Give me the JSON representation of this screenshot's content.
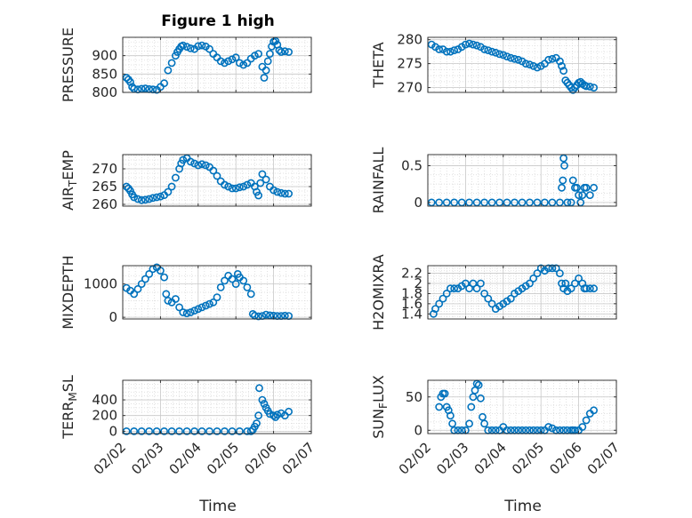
{
  "figure": {
    "title": "Figure 1 high",
    "xlabel": "Time",
    "marker_color": "#0072BD"
  },
  "chart_data": [
    {
      "type": "scatter",
      "ylabel": "PRESSURE",
      "ylim": [
        800,
        950
      ],
      "yticks": [
        800,
        850,
        900
      ],
      "ytick_labels": [
        "800",
        "850",
        "900"
      ],
      "xlim": [
        0,
        5
      ],
      "xticks": [
        0,
        1,
        2,
        3,
        4,
        5
      ],
      "xtick_labels": [
        "02/02",
        "02/03",
        "02/04",
        "02/05",
        "02/06",
        "02/07"
      ],
      "x": [
        0.1,
        0.15,
        0.2,
        0.25,
        0.3,
        0.4,
        0.5,
        0.6,
        0.7,
        0.8,
        0.9,
        1.0,
        1.1,
        1.2,
        1.3,
        1.4,
        1.45,
        1.5,
        1.55,
        1.6,
        1.7,
        1.8,
        1.9,
        2.0,
        2.1,
        2.2,
        2.3,
        2.4,
        2.5,
        2.6,
        2.7,
        2.8,
        2.9,
        3.0,
        3.1,
        3.2,
        3.3,
        3.4,
        3.5,
        3.6,
        3.7,
        3.75,
        3.8,
        3.85,
        3.9,
        3.95,
        4.0,
        4.05,
        4.1,
        4.15,
        4.2,
        4.3,
        4.4
      ],
      "y": [
        840,
        835,
        828,
        815,
        810,
        808,
        810,
        811,
        809,
        808,
        807,
        815,
        825,
        860,
        880,
        900,
        910,
        918,
        925,
        928,
        924,
        920,
        918,
        926,
        928,
        925,
        918,
        905,
        895,
        885,
        880,
        885,
        890,
        895,
        880,
        875,
        880,
        892,
        900,
        905,
        870,
        840,
        860,
        885,
        905,
        925,
        938,
        940,
        930,
        915,
        910,
        912,
        910
      ]
    },
    {
      "type": "scatter",
      "ylabel": "THETA",
      "ylim": [
        269,
        280.5
      ],
      "yticks": [
        270,
        275,
        280
      ],
      "ytick_labels": [
        "270",
        "275",
        "280"
      ],
      "xlim": [
        0,
        5
      ],
      "xticks": [
        0,
        1,
        2,
        3,
        4,
        5
      ],
      "xtick_labels": [
        "02/02",
        "02/03",
        "02/04",
        "02/05",
        "02/06",
        "02/07"
      ],
      "x": [
        0.1,
        0.2,
        0.3,
        0.4,
        0.5,
        0.6,
        0.7,
        0.8,
        0.9,
        1.0,
        1.1,
        1.2,
        1.3,
        1.4,
        1.5,
        1.6,
        1.7,
        1.8,
        1.9,
        2.0,
        2.1,
        2.2,
        2.3,
        2.4,
        2.5,
        2.6,
        2.7,
        2.8,
        2.9,
        3.0,
        3.1,
        3.2,
        3.3,
        3.4,
        3.5,
        3.55,
        3.6,
        3.65,
        3.7,
        3.75,
        3.8,
        3.85,
        3.9,
        3.95,
        4.0,
        4.05,
        4.1,
        4.15,
        4.2,
        4.3,
        4.4
      ],
      "y": [
        279,
        278.5,
        278,
        278,
        277.5,
        277.5,
        277.8,
        278,
        278.5,
        279,
        279.2,
        279,
        278.8,
        278.5,
        278,
        277.8,
        277.5,
        277.3,
        277,
        276.8,
        276.5,
        276.2,
        276,
        275.8,
        275.5,
        275,
        274.8,
        274.5,
        274.2,
        274.5,
        275,
        275.8,
        276,
        276.2,
        275.5,
        274.5,
        273.5,
        271.5,
        271,
        270.5,
        270,
        269.5,
        270,
        270.5,
        271,
        271.2,
        270.8,
        270.5,
        270.3,
        270.2,
        270
      ]
    },
    {
      "type": "scatter",
      "ylabel": "AIR_TEMP",
      "ylim": [
        259.5,
        274
      ],
      "yticks": [
        260,
        265,
        270
      ],
      "ytick_labels": [
        "260",
        "265",
        "270"
      ],
      "xlim": [
        0,
        5
      ],
      "xticks": [
        0,
        1,
        2,
        3,
        4,
        5
      ],
      "xtick_labels": [
        "02/02",
        "02/03",
        "02/04",
        "02/05",
        "02/06",
        "02/07"
      ],
      "x": [
        0.1,
        0.15,
        0.2,
        0.25,
        0.3,
        0.4,
        0.5,
        0.6,
        0.7,
        0.8,
        0.9,
        1.0,
        1.1,
        1.2,
        1.3,
        1.4,
        1.5,
        1.55,
        1.6,
        1.7,
        1.8,
        1.9,
        2.0,
        2.1,
        2.2,
        2.3,
        2.4,
        2.5,
        2.6,
        2.7,
        2.8,
        2.9,
        3.0,
        3.1,
        3.2,
        3.3,
        3.4,
        3.5,
        3.55,
        3.6,
        3.65,
        3.7,
        3.8,
        3.9,
        4.0,
        4.1,
        4.2,
        4.3,
        4.4
      ],
      "y": [
        265,
        264.5,
        263.8,
        262.8,
        262,
        261.5,
        261.2,
        261.3,
        261.5,
        261.8,
        262,
        262.2,
        262.6,
        263.5,
        265,
        267.5,
        270,
        271.5,
        272.5,
        273,
        272,
        271.5,
        271,
        271.3,
        271,
        270.5,
        269.5,
        268,
        266.5,
        265.5,
        265,
        264.5,
        264.5,
        264.8,
        265,
        265.5,
        266,
        265,
        263.5,
        262.5,
        266,
        268.5,
        267,
        265,
        264,
        263.5,
        263.2,
        263,
        263
      ]
    },
    {
      "type": "scatter",
      "ylabel": "RAINFALL",
      "ylim": [
        -0.05,
        0.65
      ],
      "yticks": [
        0,
        0.5
      ],
      "ytick_labels": [
        "0",
        "0.5"
      ],
      "xlim": [
        0,
        5
      ],
      "xticks": [
        0,
        1,
        2,
        3,
        4,
        5
      ],
      "xtick_labels": [
        "02/02",
        "02/03",
        "02/04",
        "02/05",
        "02/06",
        "02/07"
      ],
      "x": [
        0.1,
        0.3,
        0.5,
        0.7,
        0.9,
        1.1,
        1.3,
        1.5,
        1.7,
        1.9,
        2.1,
        2.3,
        2.5,
        2.7,
        2.9,
        3.1,
        3.3,
        3.5,
        3.55,
        3.58,
        3.6,
        3.62,
        3.7,
        3.8,
        3.85,
        3.9,
        3.95,
        4.0,
        4.05,
        4.1,
        4.15,
        4.2,
        4.3,
        4.4
      ],
      "y": [
        0,
        0,
        0,
        0,
        0,
        0,
        0,
        0,
        0,
        0,
        0,
        0,
        0,
        0,
        0,
        0,
        0,
        0,
        0.2,
        0.3,
        0.6,
        0.5,
        0,
        0,
        0.3,
        0.2,
        0.2,
        0.1,
        0,
        0.1,
        0.2,
        0.2,
        0.1,
        0.2
      ]
    },
    {
      "type": "scatter",
      "ylabel": "MIXDEPTH",
      "ylim": [
        -50,
        1550
      ],
      "yticks": [
        0,
        1000
      ],
      "ytick_labels": [
        "0",
        "1000"
      ],
      "xlim": [
        0,
        5
      ],
      "xticks": [
        0,
        1,
        2,
        3,
        4,
        5
      ],
      "xtick_labels": [
        "02/02",
        "02/03",
        "02/04",
        "02/05",
        "02/06",
        "02/07"
      ],
      "x": [
        0.1,
        0.2,
        0.3,
        0.4,
        0.5,
        0.6,
        0.7,
        0.8,
        0.9,
        1.0,
        1.1,
        1.15,
        1.2,
        1.3,
        1.4,
        1.5,
        1.6,
        1.7,
        1.8,
        1.9,
        2.0,
        2.1,
        2.2,
        2.3,
        2.4,
        2.5,
        2.6,
        2.7,
        2.8,
        2.9,
        3.0,
        3.05,
        3.1,
        3.2,
        3.3,
        3.4,
        3.45,
        3.5,
        3.6,
        3.7,
        3.8,
        3.9,
        4.0,
        4.1,
        4.2,
        4.3,
        4.4
      ],
      "y": [
        880,
        800,
        700,
        850,
        1000,
        1150,
        1300,
        1450,
        1500,
        1400,
        1200,
        700,
        500,
        450,
        550,
        300,
        150,
        120,
        150,
        200,
        250,
        300,
        350,
        400,
        450,
        600,
        900,
        1100,
        1250,
        1150,
        1000,
        1300,
        1200,
        1100,
        900,
        700,
        100,
        50,
        30,
        40,
        80,
        60,
        50,
        40,
        40,
        50,
        40
      ]
    },
    {
      "type": "scatter",
      "ylabel": "H2OMIXRA",
      "ylim": [
        1.3,
        2.35
      ],
      "yticks": [
        1.4,
        1.6,
        1.8,
        2.0,
        2.2
      ],
      "ytick_labels": [
        "1.4",
        "1.6",
        "1.8",
        "2",
        "2.2"
      ],
      "xlim": [
        0,
        5
      ],
      "xticks": [
        0,
        1,
        2,
        3,
        4,
        5
      ],
      "xtick_labels": [
        "02/02",
        "02/03",
        "02/04",
        "02/05",
        "02/06",
        "02/07"
      ],
      "x": [
        0.15,
        0.2,
        0.3,
        0.4,
        0.5,
        0.6,
        0.7,
        0.8,
        0.9,
        1.0,
        1.1,
        1.2,
        1.3,
        1.4,
        1.5,
        1.6,
        1.7,
        1.8,
        1.9,
        2.0,
        2.1,
        2.2,
        2.3,
        2.4,
        2.5,
        2.6,
        2.7,
        2.8,
        2.9,
        3.0,
        3.1,
        3.2,
        3.3,
        3.4,
        3.5,
        3.55,
        3.6,
        3.65,
        3.7,
        3.8,
        3.9,
        4.0,
        4.1,
        4.15,
        4.2,
        4.3,
        4.4
      ],
      "y": [
        1.4,
        1.5,
        1.6,
        1.7,
        1.8,
        1.9,
        1.9,
        1.9,
        1.95,
        2.0,
        1.9,
        2.0,
        1.9,
        2.0,
        1.8,
        1.7,
        1.6,
        1.5,
        1.55,
        1.6,
        1.65,
        1.7,
        1.8,
        1.85,
        1.9,
        1.95,
        2.0,
        2.1,
        2.2,
        2.3,
        2.25,
        2.3,
        2.3,
        2.3,
        2.2,
        2.0,
        1.9,
        2.0,
        1.85,
        1.9,
        2.0,
        2.1,
        2.0,
        1.9,
        1.9,
        1.9,
        1.9
      ]
    },
    {
      "type": "scatter",
      "ylabel": "TERR_MSL",
      "ylim": [
        -30,
        650
      ],
      "yticks": [
        0,
        200,
        400
      ],
      "ytick_labels": [
        "0",
        "200",
        "400"
      ],
      "xlim": [
        0,
        5
      ],
      "xticks": [
        0,
        1,
        2,
        3,
        4,
        5
      ],
      "xtick_labels": [
        "02/02",
        "02/03",
        "02/04",
        "02/05",
        "02/06",
        "02/07"
      ],
      "x": [
        0.1,
        0.3,
        0.5,
        0.7,
        0.9,
        1.1,
        1.3,
        1.5,
        1.7,
        1.9,
        2.1,
        2.3,
        2.5,
        2.7,
        2.9,
        3.1,
        3.3,
        3.4,
        3.45,
        3.5,
        3.55,
        3.6,
        3.62,
        3.7,
        3.75,
        3.8,
        3.85,
        3.9,
        4.0,
        4.05,
        4.1,
        4.2,
        4.3,
        4.4
      ],
      "y": [
        0,
        0,
        0,
        0,
        0,
        0,
        0,
        0,
        0,
        0,
        0,
        0,
        0,
        0,
        0,
        0,
        0,
        0,
        20,
        60,
        100,
        200,
        550,
        400,
        350,
        300,
        260,
        220,
        200,
        180,
        210,
        230,
        200,
        250
      ]
    },
    {
      "type": "scatter",
      "ylabel": "SUN_FLUX",
      "ylim": [
        -5,
        75
      ],
      "yticks": [
        0,
        50
      ],
      "ytick_labels": [
        "0",
        "50"
      ],
      "xlim": [
        0,
        5
      ],
      "xticks": [
        0,
        1,
        2,
        3,
        4,
        5
      ],
      "xtick_labels": [
        "02/02",
        "02/03",
        "02/04",
        "02/05",
        "02/06",
        "02/07"
      ],
      "x": [
        0.3,
        0.35,
        0.4,
        0.45,
        0.5,
        0.55,
        0.6,
        0.65,
        0.7,
        0.8,
        0.9,
        1.0,
        1.1,
        1.15,
        1.2,
        1.25,
        1.3,
        1.35,
        1.4,
        1.45,
        1.5,
        1.6,
        1.7,
        1.8,
        1.9,
        2.0,
        2.1,
        2.2,
        2.3,
        2.4,
        2.5,
        2.6,
        2.7,
        2.8,
        2.9,
        3.0,
        3.1,
        3.2,
        3.3,
        3.4,
        3.5,
        3.6,
        3.7,
        3.8,
        3.85,
        3.9,
        4.0,
        4.1,
        4.2,
        4.3,
        4.4
      ],
      "y": [
        35,
        50,
        55,
        55,
        35,
        30,
        22,
        10,
        0,
        0,
        0,
        0,
        10,
        35,
        50,
        60,
        70,
        68,
        48,
        20,
        10,
        0,
        0,
        0,
        0,
        5,
        0,
        0,
        0,
        0,
        0,
        0,
        0,
        0,
        0,
        0,
        0,
        5,
        3,
        0,
        0,
        0,
        0,
        0,
        0,
        0,
        0,
        5,
        15,
        25,
        30
      ]
    }
  ]
}
